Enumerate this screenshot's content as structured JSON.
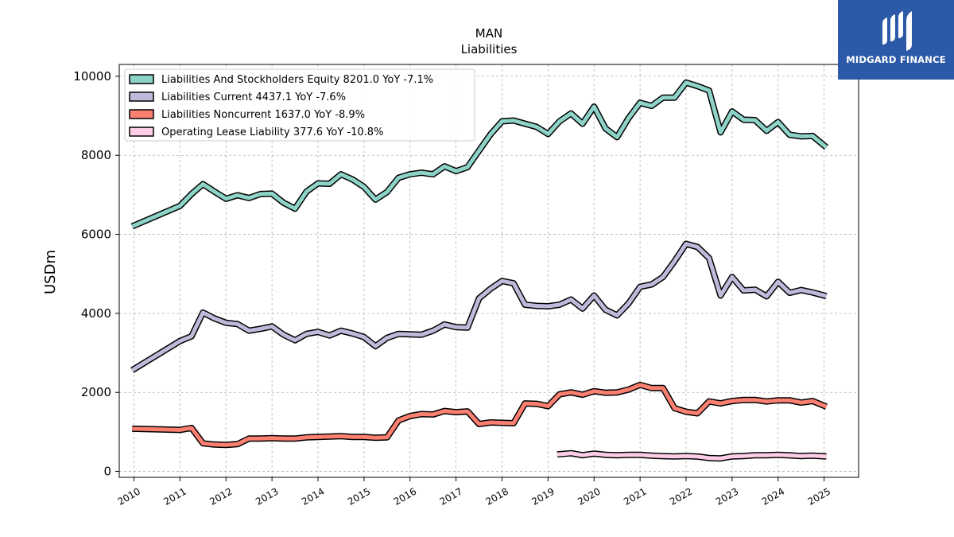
{
  "chart_data": {
    "type": "line",
    "title": "MAN",
    "subtitle": "Liabilities",
    "xlabel": "",
    "ylabel": "USDm",
    "xlim": [
      2009.68,
      2025.75
    ],
    "ylim": [
      -150,
      10300
    ],
    "grid": true,
    "legend_position": "top-left",
    "x_ticks": [
      2010,
      2011,
      2012,
      2013,
      2014,
      2015,
      2016,
      2017,
      2018,
      2019,
      2020,
      2021,
      2022,
      2023,
      2024,
      2025
    ],
    "y_ticks": [
      0,
      2000,
      4000,
      6000,
      8000,
      10000
    ],
    "series": [
      {
        "name": "Liabilities And Stockholders Equity  8201.0 YoY -7.1%",
        "color": "#8dd3c7",
        "x": [
          2009.96,
          2011.0,
          2011.25,
          2011.5,
          2011.75,
          2012.0,
          2012.25,
          2012.5,
          2012.75,
          2013.0,
          2013.25,
          2013.5,
          2013.75,
          2014.0,
          2014.25,
          2014.5,
          2014.75,
          2015.0,
          2015.25,
          2015.5,
          2015.75,
          2016.0,
          2016.25,
          2016.5,
          2016.75,
          2017.0,
          2017.25,
          2017.5,
          2017.75,
          2018.0,
          2018.25,
          2018.5,
          2018.75,
          2019.0,
          2019.25,
          2019.5,
          2019.75,
          2020.0,
          2020.25,
          2020.5,
          2020.75,
          2021.0,
          2021.25,
          2021.5,
          2021.75,
          2022.0,
          2022.25,
          2022.5,
          2022.75,
          2023.0,
          2023.25,
          2023.5,
          2023.75,
          2024.0,
          2024.25,
          2024.5,
          2024.75,
          2025.05
        ],
        "values": [
          6200,
          6720,
          7020,
          7270,
          7080,
          6900,
          6990,
          6920,
          7020,
          7030,
          6800,
          6650,
          7080,
          7290,
          7280,
          7520,
          7390,
          7200,
          6880,
          7070,
          7430,
          7520,
          7560,
          7520,
          7720,
          7600,
          7700,
          8120,
          8530,
          8860,
          8880,
          8800,
          8720,
          8540,
          8860,
          9060,
          8800,
          9230,
          8680,
          8460,
          8940,
          9330,
          9250,
          9460,
          9460,
          9840,
          9750,
          9640,
          8580,
          9110,
          8900,
          8890,
          8620,
          8840,
          8520,
          8480,
          8490,
          8201
        ]
      },
      {
        "name": "Liabilities Current  4437.1 YoY -7.6%",
        "color": "#bebada",
        "x": [
          2009.96,
          2011.0,
          2011.25,
          2011.5,
          2011.75,
          2012.0,
          2012.25,
          2012.5,
          2012.75,
          2013.0,
          2013.25,
          2013.5,
          2013.75,
          2014.0,
          2014.25,
          2014.5,
          2014.75,
          2015.0,
          2015.25,
          2015.5,
          2015.75,
          2016.0,
          2016.25,
          2016.5,
          2016.75,
          2017.0,
          2017.25,
          2017.5,
          2017.75,
          2018.0,
          2018.25,
          2018.5,
          2018.75,
          2019.0,
          2019.25,
          2019.5,
          2019.75,
          2020.0,
          2020.25,
          2020.5,
          2020.75,
          2021.0,
          2021.25,
          2021.5,
          2021.75,
          2022.0,
          2022.25,
          2022.5,
          2022.75,
          2023.0,
          2023.25,
          2023.5,
          2023.75,
          2024.0,
          2024.25,
          2024.5,
          2024.75,
          2025.05
        ],
        "values": [
          2560,
          3300,
          3420,
          4020,
          3870,
          3760,
          3730,
          3560,
          3610,
          3670,
          3460,
          3320,
          3480,
          3530,
          3440,
          3560,
          3490,
          3400,
          3170,
          3380,
          3480,
          3470,
          3460,
          3560,
          3720,
          3650,
          3640,
          4380,
          4620,
          4820,
          4760,
          4220,
          4190,
          4180,
          4220,
          4350,
          4120,
          4450,
          4090,
          3950,
          4250,
          4670,
          4730,
          4920,
          5320,
          5760,
          5680,
          5400,
          4450,
          4920,
          4580,
          4600,
          4430,
          4800,
          4520,
          4590,
          4530,
          4437
        ]
      },
      {
        "name": "Liabilities Noncurrent  1637.0 YoY -8.9%",
        "color": "#fb8072",
        "x": [
          2009.96,
          2011.0,
          2011.25,
          2011.5,
          2011.75,
          2012.0,
          2012.25,
          2012.5,
          2012.75,
          2013.0,
          2013.25,
          2013.5,
          2013.75,
          2014.0,
          2014.25,
          2014.5,
          2014.75,
          2015.0,
          2015.25,
          2015.5,
          2015.75,
          2016.0,
          2016.25,
          2016.5,
          2016.75,
          2017.0,
          2017.25,
          2017.5,
          2017.75,
          2018.0,
          2018.25,
          2018.5,
          2018.75,
          2019.0,
          2019.25,
          2019.5,
          2019.75,
          2020.0,
          2020.25,
          2020.5,
          2020.75,
          2021.0,
          2021.25,
          2021.5,
          2021.75,
          2022.0,
          2022.25,
          2022.5,
          2022.75,
          2023.0,
          2023.25,
          2023.5,
          2023.75,
          2024.0,
          2024.25,
          2024.5,
          2024.75,
          2025.05
        ],
        "values": [
          1080,
          1050,
          1100,
          710,
          680,
          670,
          690,
          830,
          830,
          840,
          830,
          830,
          860,
          870,
          880,
          890,
          870,
          870,
          850,
          860,
          1290,
          1400,
          1450,
          1440,
          1530,
          1500,
          1520,
          1200,
          1240,
          1230,
          1220,
          1720,
          1710,
          1650,
          1950,
          2000,
          1940,
          2030,
          1990,
          2000,
          2070,
          2190,
          2110,
          2110,
          1600,
          1510,
          1470,
          1770,
          1720,
          1780,
          1810,
          1810,
          1770,
          1800,
          1800,
          1740,
          1780,
          1637
        ]
      },
      {
        "name": "Operating Lease Liability  377.6 YoY -10.8%",
        "color": "#fccde5",
        "x": [
          2019.2,
          2019.5,
          2019.75,
          2020.0,
          2020.25,
          2020.5,
          2020.75,
          2021.0,
          2021.25,
          2021.5,
          2021.75,
          2022.0,
          2022.25,
          2022.5,
          2022.75,
          2023.0,
          2023.25,
          2023.5,
          2023.75,
          2024.0,
          2024.25,
          2024.5,
          2024.75,
          2025.05
        ],
        "values": [
          430,
          460,
          410,
          450,
          420,
          410,
          420,
          420,
          400,
          385,
          380,
          390,
          375,
          340,
          330,
          380,
          390,
          410,
          410,
          420,
          405,
          390,
          400,
          378
        ]
      }
    ]
  },
  "logo": {
    "text": "MIDGARD FINANCE"
  }
}
